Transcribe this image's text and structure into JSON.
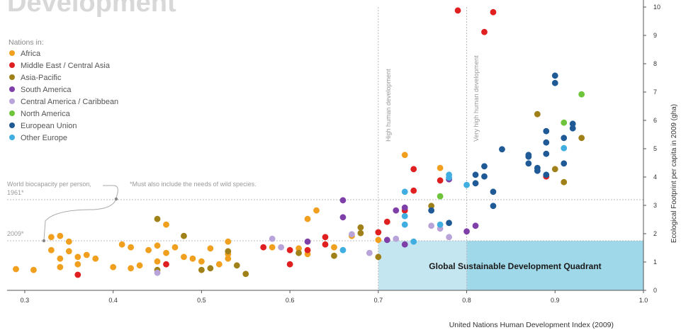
{
  "chart_data": {
    "type": "scatter",
    "title": "Development",
    "xlabel": "United Nations Human Development Index (2009)",
    "ylabel": "Ecological Footprint per capita in 2009 (gha)",
    "xlim": [
      0.28,
      1.0
    ],
    "ylim": [
      0,
      10
    ],
    "x_ticks": [
      "0.3",
      "0.4",
      "0.5",
      "0.6",
      "0.7",
      "0.8",
      "0.9",
      "1.0"
    ],
    "y_ticks": [
      "0",
      "1",
      "2",
      "3",
      "4",
      "5",
      "6",
      "7",
      "8",
      "9",
      "10"
    ],
    "grid": false,
    "legend_position": "top-left",
    "legend_title": "Nations in:",
    "annotations": {
      "high_hd": "High human development",
      "very_high_hd": "Very high human development",
      "biocap_label": "World biocapacity per person,",
      "biocap_year_1961": "1961*",
      "biocap_year_2009": "2009*",
      "footnote": "*Must also include the needs of wild species.",
      "quadrant_label": "Global Sustainable Development Quadrant"
    },
    "reference_lines": {
      "high_hd_x": 0.7,
      "very_high_hd_x": 0.8,
      "biocap_1961": 3.2,
      "biocap_2009": 1.75
    },
    "quadrant": {
      "x_from": 0.7,
      "x_to": 1.0,
      "y_from": 0,
      "y_to": 1.75
    },
    "series": [
      {
        "name": "Africa",
        "color": "#f0a01e",
        "points": [
          [
            0.29,
            0.75
          ],
          [
            0.31,
            0.72
          ],
          [
            0.33,
            1.88
          ],
          [
            0.33,
            1.42
          ],
          [
            0.34,
            1.92
          ],
          [
            0.34,
            1.12
          ],
          [
            0.34,
            0.82
          ],
          [
            0.35,
            1.72
          ],
          [
            0.35,
            1.38
          ],
          [
            0.36,
            1.18
          ],
          [
            0.36,
            0.92
          ],
          [
            0.37,
            1.25
          ],
          [
            0.38,
            1.12
          ],
          [
            0.4,
            0.82
          ],
          [
            0.41,
            1.62
          ],
          [
            0.42,
            0.78
          ],
          [
            0.42,
            1.52
          ],
          [
            0.43,
            0.88
          ],
          [
            0.44,
            1.42
          ],
          [
            0.45,
            1.58
          ],
          [
            0.45,
            1.02
          ],
          [
            0.46,
            1.32
          ],
          [
            0.46,
            2.32
          ],
          [
            0.47,
            1.52
          ],
          [
            0.48,
            1.18
          ],
          [
            0.49,
            1.12
          ],
          [
            0.5,
            1.02
          ],
          [
            0.51,
            1.48
          ],
          [
            0.52,
            0.92
          ],
          [
            0.53,
            1.72
          ],
          [
            0.53,
            1.12
          ],
          [
            0.53,
            1.28
          ],
          [
            0.58,
            1.52
          ],
          [
            0.61,
            1.48
          ],
          [
            0.62,
            1.28
          ],
          [
            0.62,
            2.52
          ],
          [
            0.63,
            2.82
          ],
          [
            0.65,
            1.52
          ],
          [
            0.67,
            1.92
          ],
          [
            0.7,
            1.78
          ],
          [
            0.73,
            4.78
          ],
          [
            0.77,
            4.32
          ]
        ]
      },
      {
        "name": "Middle East / Central Asia",
        "color": "#e02020",
        "points": [
          [
            0.36,
            0.55
          ],
          [
            0.46,
            0.92
          ],
          [
            0.57,
            1.52
          ],
          [
            0.6,
            0.92
          ],
          [
            0.6,
            1.42
          ],
          [
            0.62,
            1.42
          ],
          [
            0.64,
            1.62
          ],
          [
            0.64,
            1.88
          ],
          [
            0.7,
            2.05
          ],
          [
            0.71,
            2.42
          ],
          [
            0.73,
            2.82
          ],
          [
            0.74,
            3.52
          ],
          [
            0.74,
            4.28
          ],
          [
            0.77,
            3.88
          ],
          [
            0.79,
            9.88
          ],
          [
            0.82,
            9.12
          ],
          [
            0.83,
            9.82
          ],
          [
            0.89,
            4.02
          ]
        ]
      },
      {
        "name": "Asia-Pacific",
        "color": "#a08018",
        "points": [
          [
            0.45,
            0.72
          ],
          [
            0.45,
            2.52
          ],
          [
            0.48,
            1.92
          ],
          [
            0.5,
            0.72
          ],
          [
            0.51,
            0.78
          ],
          [
            0.53,
            1.38
          ],
          [
            0.54,
            0.88
          ],
          [
            0.55,
            0.58
          ],
          [
            0.61,
            1.32
          ],
          [
            0.65,
            1.22
          ],
          [
            0.68,
            2.22
          ],
          [
            0.68,
            2.02
          ],
          [
            0.7,
            1.18
          ],
          [
            0.76,
            2.98
          ],
          [
            0.88,
            6.22
          ],
          [
            0.9,
            4.28
          ],
          [
            0.91,
            3.82
          ],
          [
            0.93,
            5.38
          ]
        ]
      },
      {
        "name": "South America",
        "color": "#7e3fa8",
        "points": [
          [
            0.62,
            1.72
          ],
          [
            0.66,
            3.18
          ],
          [
            0.66,
            2.58
          ],
          [
            0.71,
            1.78
          ],
          [
            0.72,
            2.82
          ],
          [
            0.73,
            1.62
          ],
          [
            0.73,
            2.92
          ],
          [
            0.78,
            3.92
          ],
          [
            0.8,
            2.08
          ],
          [
            0.81,
            2.28
          ]
        ]
      },
      {
        "name": "Central America / Caribbean",
        "color": "#b8a4d8",
        "points": [
          [
            0.45,
            0.62
          ],
          [
            0.58,
            1.82
          ],
          [
            0.59,
            1.52
          ],
          [
            0.67,
            1.98
          ],
          [
            0.69,
            1.32
          ],
          [
            0.72,
            1.82
          ],
          [
            0.76,
            2.28
          ],
          [
            0.77,
            2.18
          ],
          [
            0.78,
            1.88
          ]
        ]
      },
      {
        "name": "North America",
        "color": "#6ec43a",
        "points": [
          [
            0.77,
            3.32
          ],
          [
            0.91,
            5.92
          ],
          [
            0.93,
            6.92
          ]
        ]
      },
      {
        "name": "European Union",
        "color": "#1f5a96",
        "points": [
          [
            0.76,
            2.82
          ],
          [
            0.78,
            2.38
          ],
          [
            0.81,
            3.78
          ],
          [
            0.81,
            4.08
          ],
          [
            0.82,
            4.02
          ],
          [
            0.82,
            4.38
          ],
          [
            0.83,
            2.98
          ],
          [
            0.83,
            3.48
          ],
          [
            0.84,
            4.98
          ],
          [
            0.87,
            4.72
          ],
          [
            0.87,
            4.78
          ],
          [
            0.87,
            4.48
          ],
          [
            0.88,
            4.32
          ],
          [
            0.88,
            4.22
          ],
          [
            0.89,
            5.22
          ],
          [
            0.89,
            4.82
          ],
          [
            0.89,
            5.62
          ],
          [
            0.89,
            4.08
          ],
          [
            0.9,
            7.32
          ],
          [
            0.9,
            7.58
          ],
          [
            0.91,
            5.38
          ],
          [
            0.91,
            4.48
          ],
          [
            0.92,
            5.88
          ],
          [
            0.92,
            5.72
          ]
        ]
      },
      {
        "name": "Other Europe",
        "color": "#40aee0",
        "points": [
          [
            0.66,
            1.42
          ],
          [
            0.73,
            3.48
          ],
          [
            0.73,
            2.62
          ],
          [
            0.73,
            2.32
          ],
          [
            0.74,
            1.72
          ],
          [
            0.77,
            2.32
          ],
          [
            0.78,
            4.08
          ],
          [
            0.78,
            3.98
          ],
          [
            0.8,
            3.72
          ],
          [
            0.91,
            5.02
          ]
        ]
      }
    ]
  }
}
